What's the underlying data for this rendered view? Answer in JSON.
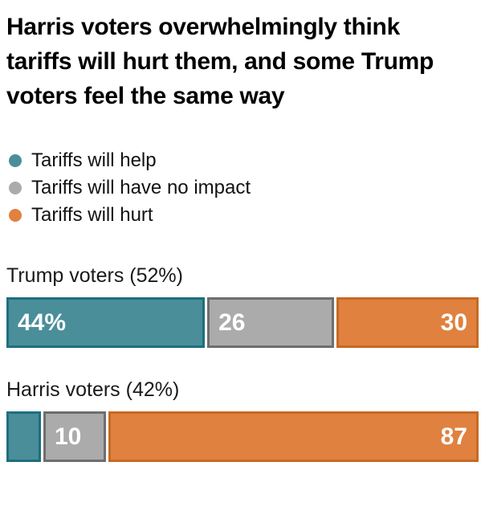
{
  "chart_data": {
    "type": "bar",
    "subtype": "horizontal-stacked-100",
    "title": "Harris voters overwhelmingly think tariffs will hurt them, and some Trump voters feel the same way",
    "legend_position": "top-left",
    "grid": false,
    "axes_visible": false,
    "legend": [
      {
        "key": "help",
        "label": "Tariffs will help",
        "color": "#4A8E9A",
        "border": "#1D6F7D"
      },
      {
        "key": "no-impact",
        "label": "Tariffs will have no impact",
        "color": "#ABABAB",
        "border": "#6E6E6E"
      },
      {
        "key": "hurt",
        "label": "Tariffs will hurt",
        "color": "#E0813F",
        "border": "#C56A24"
      }
    ],
    "value_label_color": "#FFFFFF",
    "groups": [
      {
        "label": "Trump voters (52%)",
        "values": [
          44,
          26,
          30
        ],
        "display_labels": [
          "44%",
          "26",
          "30"
        ]
      },
      {
        "label": "Harris voters (42%)",
        "values": [
          3,
          10,
          87
        ],
        "display_labels": [
          "",
          "10",
          "87"
        ]
      }
    ]
  }
}
